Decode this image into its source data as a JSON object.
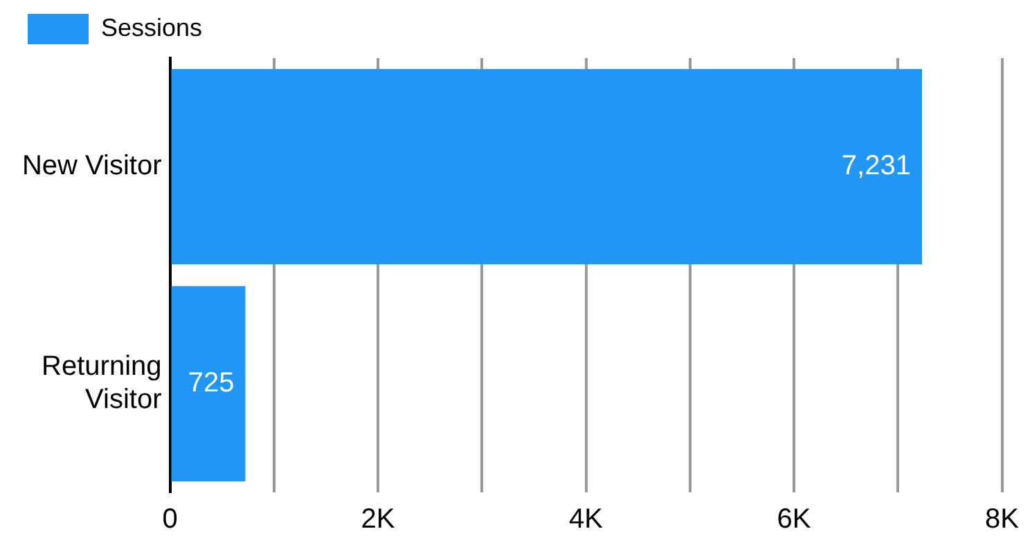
{
  "chart_data": {
    "type": "bar",
    "orientation": "horizontal",
    "categories": [
      "New Visitor",
      "Returning Visitor"
    ],
    "series": [
      {
        "name": "Sessions",
        "color": "#2196f3",
        "values": [
          7231,
          725
        ],
        "value_labels": [
          "7,231",
          "725"
        ]
      }
    ],
    "xlim": [
      0,
      8000
    ],
    "xticks": [
      {
        "value": 0,
        "label": "0"
      },
      {
        "value": 1000,
        "label": null
      },
      {
        "value": 2000,
        "label": "2K"
      },
      {
        "value": 3000,
        "label": null
      },
      {
        "value": 4000,
        "label": "4K"
      },
      {
        "value": 5000,
        "label": null
      },
      {
        "value": 6000,
        "label": "6K"
      },
      {
        "value": 7000,
        "label": null
      },
      {
        "value": 8000,
        "label": "8K"
      }
    ],
    "grid": "x",
    "legend": "top left"
  }
}
